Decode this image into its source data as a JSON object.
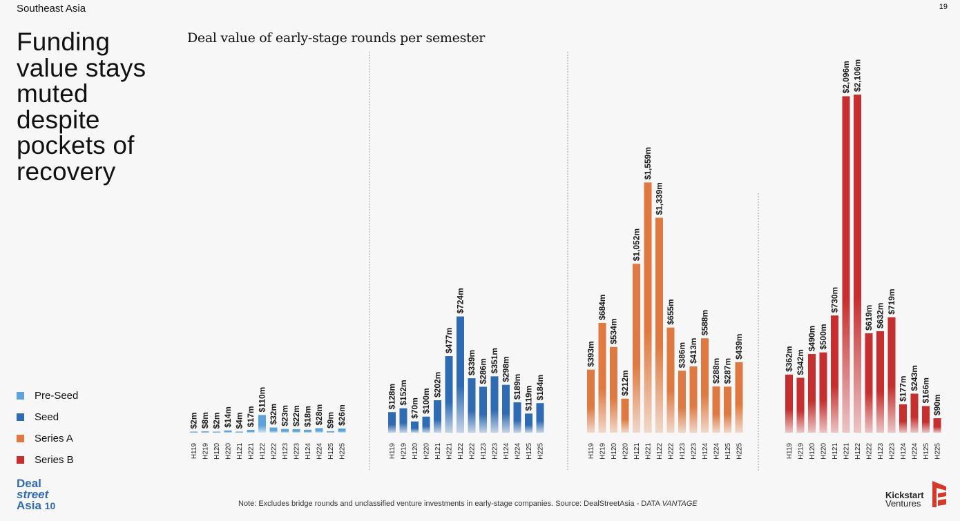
{
  "header": {
    "region": "Southeast Asia",
    "page_number": "19"
  },
  "headline": "Funding value stays muted despite pockets of recovery",
  "legend": [
    {
      "label": "Pre-Seed",
      "color": "#5ba3dc"
    },
    {
      "label": "Seed",
      "color": "#2f6bb3"
    },
    {
      "label": "Series A",
      "color": "#de7a41"
    },
    {
      "label": "Series B",
      "color": "#c62f2f"
    }
  ],
  "footer": {
    "note": "Note: Excludes bridge rounds and unclassified venture investments in early-stage companies. Source: DealStreetAsia - DATA ",
    "note_em": "VANTAGE",
    "logo_left": {
      "line1": "Deal",
      "line2": "street",
      "line3": "Asia",
      "line4": "10"
    },
    "logo_right": {
      "line1": "Kickstart",
      "line2": "Ventures"
    }
  },
  "chart_data": {
    "type": "bar",
    "title": "Deal value of early-stage rounds per semester",
    "unit": "US$ million",
    "categories": [
      "H119",
      "H219",
      "H120",
      "H220",
      "H121",
      "H221",
      "H122",
      "H222",
      "H123",
      "H223",
      "H124",
      "H224",
      "H125",
      "H225"
    ],
    "series": [
      {
        "name": "Pre-Seed",
        "color": "#5ba3dc",
        "values": [
          2,
          8,
          2,
          14,
          4,
          17,
          110,
          32,
          23,
          22,
          18,
          28,
          9,
          26
        ],
        "labels": [
          "$2m",
          "$8m",
          "$2m",
          "$14m",
          "$4m",
          "$17m",
          "$110m",
          "$32m",
          "$23m",
          "$22m",
          "$18m",
          "$28m",
          "$9m",
          "$26m"
        ]
      },
      {
        "name": "Seed",
        "color": "#2f6bb3",
        "values": [
          128,
          152,
          70,
          100,
          202,
          477,
          724,
          339,
          286,
          351,
          298,
          189,
          119,
          184
        ],
        "labels": [
          "$128m",
          "$152m",
          "$70m",
          "$100m",
          "$202m",
          "$477m",
          "$724m",
          "$339m",
          "$286m",
          "$351m",
          "$298m",
          "$189m",
          "$119m",
          "$184m"
        ]
      },
      {
        "name": "Series A",
        "color": "#de7a41",
        "values": [
          393,
          684,
          534,
          212,
          1052,
          1559,
          1339,
          655,
          386,
          413,
          588,
          288,
          287,
          439
        ],
        "labels": [
          "$393m",
          "$684m",
          "$534m",
          "$212m",
          "$1,052m",
          "$1,559m",
          "$1,339m",
          "$655m",
          "$386m",
          "$413m",
          "$588m",
          "$288m",
          "$287m",
          "$439m"
        ]
      },
      {
        "name": "Series B",
        "color": "#c62f2f",
        "values": [
          362,
          342,
          490,
          500,
          730,
          2096,
          2106,
          619,
          632,
          719,
          177,
          243,
          166,
          90
        ],
        "labels": [
          "$362m",
          "$342m",
          "$490m",
          "$500m",
          "$730m",
          "$2,096m",
          "$2,106m",
          "$619m",
          "$632m",
          "$719m",
          "$177m",
          "$243m",
          "$166m",
          "$90m"
        ]
      }
    ],
    "grid": false,
    "legend_position": "bottom-left"
  }
}
